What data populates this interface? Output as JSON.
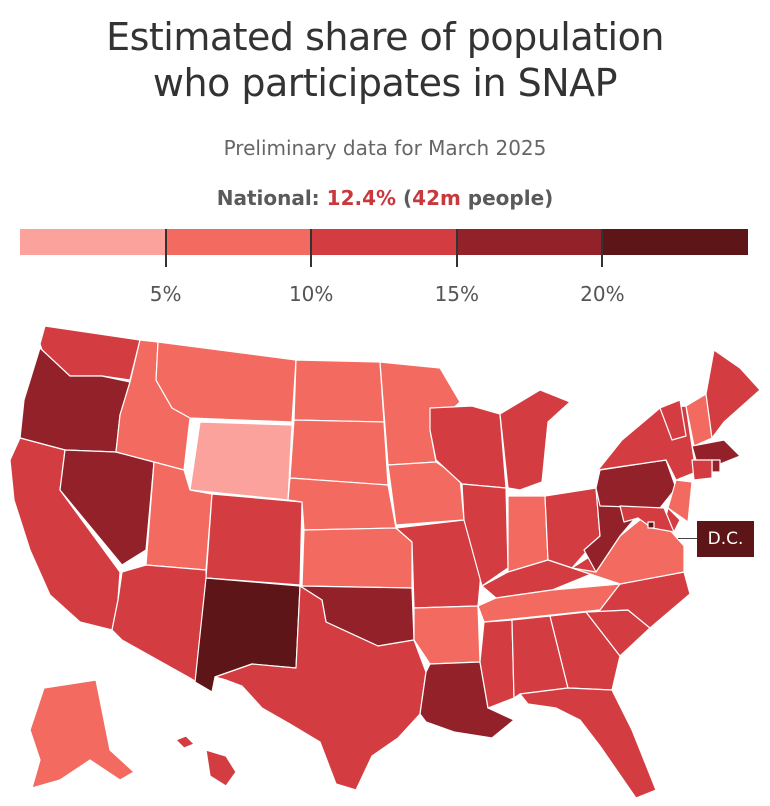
{
  "title_line1": "Estimated share of population",
  "title_line2": "who participates in SNAP",
  "subtitle": "Preliminary data for March 2025",
  "national": {
    "label": "National:",
    "rate": "12.4%",
    "open": " (",
    "people": "42m",
    "people_suffix": " people",
    "close": ")"
  },
  "legend": {
    "bins": [
      {
        "range": "0-5%",
        "color": "#fca29c"
      },
      {
        "range": "5-10%",
        "color": "#f26a60"
      },
      {
        "range": "10-15%",
        "color": "#d33d41"
      },
      {
        "range": "15-20%",
        "color": "#93212a"
      },
      {
        "range": "20%+",
        "color": "#5e1518"
      }
    ],
    "ticks": [
      "5%",
      "10%",
      "15%",
      "20%"
    ],
    "tick_values": [
      5,
      10,
      15,
      20
    ],
    "domain": [
      0,
      25
    ]
  },
  "dc_label": "D.C.",
  "states": {
    "WA": 3,
    "OR": 4,
    "CA": 3,
    "NV": 4,
    "ID": 2,
    "MT": 2,
    "WY": 1,
    "UT": 2,
    "AZ": 3,
    "CO": 3,
    "NM": 5,
    "ND": 2,
    "SD": 2,
    "NE": 2,
    "KS": 2,
    "OK": 4,
    "TX": 3,
    "MN": 2,
    "IA": 2,
    "MO": 3,
    "AR": 2,
    "LA": 4,
    "WI": 3,
    "IL": 3,
    "MI": 3,
    "IN": 2,
    "OH": 3,
    "KY": 3,
    "TN": 2,
    "MS": 3,
    "AL": 3,
    "GA": 3,
    "FL": 3,
    "SC": 3,
    "NC": 3,
    "VA": 2,
    "WV": 4,
    "PA": 4,
    "NY": 3,
    "VT": 3,
    "NH": 2,
    "ME": 3,
    "MA": 4,
    "RI": 4,
    "CT": 3,
    "NJ": 2,
    "DE": 3,
    "MD": 3,
    "DC": 5,
    "AK": 2,
    "HI": 3
  }
}
